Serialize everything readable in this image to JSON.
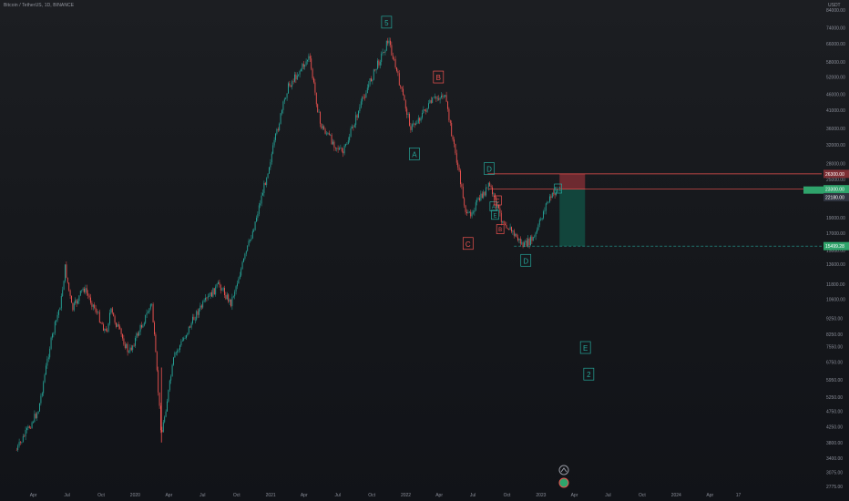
{
  "header": {
    "symbol": "Bitcoin / TetherUS, 1D, BINANCE",
    "currency": "USDT"
  },
  "colors": {
    "background": "#16181c",
    "up": "#26a69a",
    "down": "#ef5350",
    "wave_green": "#26a69a",
    "wave_red": "#ef5350",
    "stop_zone": "#7d2e34",
    "target_zone": "#124a40",
    "price_tag_green": "#2fa36b"
  },
  "chart_data": {
    "type": "candlestick",
    "symbol": "BTCUSDT",
    "interval": "1D",
    "price_scale": "log",
    "y_tick_labels": [
      "84000.00",
      "74000.00",
      "66000.00",
      "58000.00",
      "52000.00",
      "46000.00",
      "41000.00",
      "36000.00",
      "32000.00",
      "28000.00",
      "25000.00",
      "22000.00",
      "19000.00",
      "17000.00",
      "15000.00",
      "13600.00",
      "11800.00",
      "10600.00",
      "9250.00",
      "8250.00",
      "7550.00",
      "6750.00",
      "5950.00",
      "5250.00",
      "4750.00",
      "4250.00",
      "3800.00",
      "3400.00",
      "3075.00",
      "2775.00"
    ],
    "x_tick_labels": [
      "Apr",
      "Jul",
      "Oct",
      "2020",
      "Apr",
      "Jul",
      "Oct",
      "2021",
      "Apr",
      "Jul",
      "Oct",
      "2022",
      "Apr",
      "Jul",
      "Oct",
      "2023",
      "Apr",
      "Jul",
      "Oct",
      "2024",
      "Apr",
      "17"
    ],
    "price_path": [
      {
        "date": "2019-02",
        "price": 3600
      },
      {
        "date": "2019-04",
        "price": 4800
      },
      {
        "date": "2019-05",
        "price": 7500
      },
      {
        "date": "2019-06",
        "price": 10500
      },
      {
        "date": "2019-06-26",
        "price": 13300
      },
      {
        "date": "2019-07",
        "price": 9800
      },
      {
        "date": "2019-08",
        "price": 11500
      },
      {
        "date": "2019-09",
        "price": 9900
      },
      {
        "date": "2019-10",
        "price": 8300
      },
      {
        "date": "2019-10-26",
        "price": 9800
      },
      {
        "date": "2019-12",
        "price": 7200
      },
      {
        "date": "2020-02",
        "price": 10300
      },
      {
        "date": "2020-03-12",
        "price": 4000
      },
      {
        "date": "2020-04",
        "price": 7000
      },
      {
        "date": "2020-06",
        "price": 9600
      },
      {
        "date": "2020-08",
        "price": 11800
      },
      {
        "date": "2020-09",
        "price": 10300
      },
      {
        "date": "2020-11",
        "price": 17500
      },
      {
        "date": "2020-12",
        "price": 24000
      },
      {
        "date": "2021-01",
        "price": 34000
      },
      {
        "date": "2021-02",
        "price": 48000
      },
      {
        "date": "2021-04",
        "price": 60000
      },
      {
        "date": "2021-05",
        "price": 37000
      },
      {
        "date": "2021-06",
        "price": 33000
      },
      {
        "date": "2021-07",
        "price": 30000
      },
      {
        "date": "2021-09",
        "price": 47000
      },
      {
        "date": "2021-11",
        "price": 68000
      },
      {
        "date": "2022-01",
        "price": 36000
      },
      {
        "date": "2022-03",
        "price": 44000
      },
      {
        "date": "2022-04",
        "price": 46000
      },
      {
        "date": "2022-05",
        "price": 30000
      },
      {
        "date": "2022-06",
        "price": 19000
      },
      {
        "date": "2022-08",
        "price": 24000
      },
      {
        "date": "2022-09",
        "price": 19000
      },
      {
        "date": "2022-11",
        "price": 15500
      },
      {
        "date": "2022-12",
        "price": 16500
      },
      {
        "date": "2023-01",
        "price": 21000
      },
      {
        "date": "2023-02",
        "price": 23300
      }
    ],
    "wave_labels": [
      {
        "text": "5",
        "date": "2021-11-10",
        "price": 110000,
        "color": "green"
      },
      {
        "text": "5",
        "date": "2021-11-10",
        "price": 77000,
        "color": "green"
      },
      {
        "text": "A",
        "date": "2022-01-24",
        "price": 30000,
        "color": "green"
      },
      {
        "text": "B",
        "date": "2022-03-30",
        "price": 52000,
        "color": "red"
      },
      {
        "text": "C",
        "date": "2022-06-18",
        "price": 15800,
        "color": "red"
      },
      {
        "text": "D",
        "date": "2022-08-14",
        "price": 27000,
        "color": "green"
      },
      {
        "text": "A",
        "date": "2022-08-26",
        "price": 20600,
        "color": "green"
      },
      {
        "text": "C",
        "date": "2022-09-06",
        "price": 21500,
        "color": "red"
      },
      {
        "text": "B",
        "date": "2022-09-13",
        "price": 17500,
        "color": "red"
      },
      {
        "text": "E",
        "date": "2022-08-30",
        "price": 19400,
        "color": "green"
      },
      {
        "text": "D",
        "date": "2022-11-21",
        "price": 14000,
        "color": "green"
      },
      {
        "text": "E1",
        "date": "2023-02-16",
        "price": 23400,
        "color": "green"
      },
      {
        "text": "E",
        "date": "2023-05-01",
        "price": 7500,
        "color": "green"
      },
      {
        "text": "2",
        "date": "2023-05-10",
        "price": 6200,
        "color": "green"
      }
    ],
    "position_tool": {
      "entry": 23300,
      "stop": 26000,
      "target": 15499.28,
      "start_date": "2023-02-20",
      "end_date": "2023-04-30"
    },
    "horizontal_lines": [
      {
        "price": 26000,
        "style": "solid",
        "color": "red"
      },
      {
        "price": 23300,
        "style": "solid",
        "color": "red"
      },
      {
        "price": 15499.28,
        "style": "dashed",
        "color": "green"
      }
    ],
    "price_tags": [
      {
        "text": "26300.00",
        "price": 26000,
        "color": "#7d2e34"
      },
      {
        "text": "23300.00",
        "price": 23300,
        "color": "#2fa36b"
      },
      {
        "text": "22180.00",
        "price": 22000,
        "color": "#2f3440"
      },
      {
        "text": "15499.28",
        "price": 15499.28,
        "color": "#2fa36b"
      }
    ]
  }
}
